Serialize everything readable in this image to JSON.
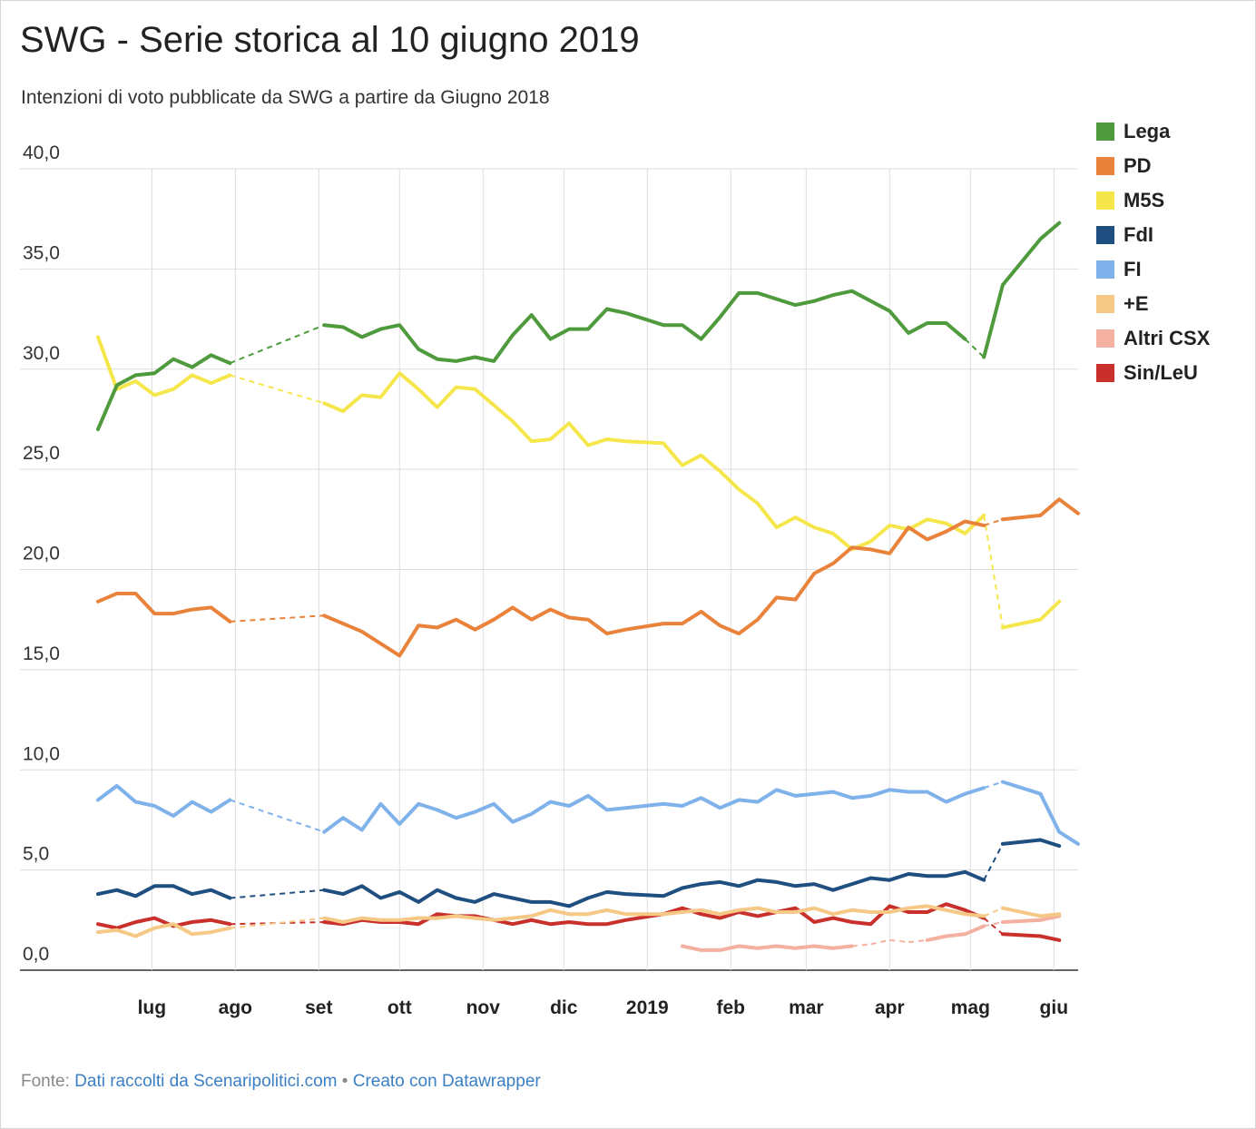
{
  "header": {
    "title": "SWG - Serie storica al 10 giugno 2019",
    "subtitle": "Intenzioni di voto pubblicate da SWG a partire da Giugno 2018"
  },
  "footer": {
    "label": "Fonte:",
    "source": "Dati raccolti da Scenaripolitici.com",
    "separator": "•",
    "credit": "Creato con Datawrapper"
  },
  "chart_data": {
    "type": "line",
    "title": "SWG - Serie storica al 10 giugno 2019",
    "subtitle": "Intenzioni di voto pubblicate da SWG a partire da Giugno 2018",
    "y_ticks": [
      "40,0",
      "35,0",
      "30,0",
      "25,0",
      "20,0",
      "15,0",
      "10,0",
      "5,0",
      "0,0"
    ],
    "ylim": [
      0,
      40
    ],
    "x_ticks": [
      {
        "label": "lug",
        "date": "2018-07-01"
      },
      {
        "label": "ago",
        "date": "2018-08-01"
      },
      {
        "label": "set",
        "date": "2018-09-01"
      },
      {
        "label": "ott",
        "date": "2018-10-01"
      },
      {
        "label": "nov",
        "date": "2018-11-01"
      },
      {
        "label": "dic",
        "date": "2018-12-01"
      },
      {
        "label": "2019",
        "date": "2019-01-01"
      },
      {
        "label": "feb",
        "date": "2019-02-01"
      },
      {
        "label": "mar",
        "date": "2019-03-01"
      },
      {
        "label": "apr",
        "date": "2019-04-01"
      },
      {
        "label": "mag",
        "date": "2019-05-01"
      },
      {
        "label": "giu",
        "date": "2019-06-01"
      }
    ],
    "grid": true,
    "legend": "right",
    "x": [
      "2018-06-11",
      "2018-06-18",
      "2018-06-25",
      "2018-07-02",
      "2018-07-09",
      "2018-07-16",
      "2018-07-23",
      "2018-07-30",
      "2018-09-03",
      "2018-09-10",
      "2018-09-17",
      "2018-09-24",
      "2018-10-01",
      "2018-10-08",
      "2018-10-15",
      "2018-10-22",
      "2018-10-29",
      "2018-11-05",
      "2018-11-12",
      "2018-11-19",
      "2018-11-26",
      "2018-12-03",
      "2018-12-10",
      "2018-12-17",
      "2018-12-24",
      "2019-01-07",
      "2019-01-14",
      "2019-01-21",
      "2019-01-28",
      "2019-02-04",
      "2019-02-11",
      "2019-02-18",
      "2019-02-25",
      "2019-03-04",
      "2019-03-11",
      "2019-03-18",
      "2019-03-25",
      "2019-04-01",
      "2019-04-08",
      "2019-04-15",
      "2019-04-22",
      "2019-04-29",
      "2019-05-06",
      "2019-05-13",
      "2019-05-27",
      "2019-06-03",
      "2019-06-10"
    ],
    "series": [
      {
        "name": "Lega",
        "color": "#4e9a3c",
        "values": [
          27.0,
          29.2,
          29.7,
          29.8,
          30.5,
          30.1,
          30.7,
          30.3,
          32.2,
          32.1,
          31.6,
          32.0,
          32.2,
          31.0,
          30.5,
          30.4,
          30.6,
          30.4,
          31.7,
          32.7,
          31.5,
          32.0,
          32.0,
          33.0,
          32.8,
          32.2,
          32.2,
          31.5,
          32.6,
          33.8,
          33.8,
          33.5,
          33.2,
          33.4,
          33.7,
          33.9,
          33.4,
          32.9,
          31.8,
          32.3,
          32.3,
          31.5,
          30.6,
          34.2,
          36.5,
          37.3,
          null
        ],
        "gaps_after": [
          7,
          41
        ]
      },
      {
        "name": "PD",
        "color": "#e9823a",
        "values": [
          18.4,
          18.8,
          18.8,
          17.8,
          17.8,
          18.0,
          18.1,
          17.4,
          17.7,
          17.3,
          16.9,
          16.3,
          15.7,
          17.2,
          17.1,
          17.5,
          17.0,
          17.5,
          18.1,
          17.5,
          18.0,
          17.6,
          17.5,
          16.8,
          17.0,
          17.3,
          17.3,
          17.9,
          17.2,
          16.8,
          17.5,
          18.6,
          18.5,
          19.8,
          20.3,
          21.1,
          21.0,
          20.8,
          22.1,
          21.5,
          21.9,
          22.4,
          22.2,
          22.5,
          22.7,
          23.5,
          22.8
        ],
        "gaps_after": [
          7,
          42
        ]
      },
      {
        "name": "M5S",
        "color": "#f5e74b",
        "values": [
          31.6,
          29.0,
          29.4,
          28.7,
          29.0,
          29.7,
          29.3,
          29.7,
          28.3,
          27.9,
          28.7,
          28.6,
          29.8,
          29.0,
          28.1,
          29.1,
          29.0,
          28.2,
          27.4,
          26.4,
          26.5,
          27.3,
          26.2,
          26.5,
          26.4,
          26.3,
          25.2,
          25.7,
          24.9,
          24.0,
          23.3,
          22.1,
          22.6,
          22.1,
          21.8,
          21.0,
          21.4,
          22.2,
          22.0,
          22.5,
          22.3,
          21.8,
          22.7,
          17.1,
          17.5,
          18.4,
          null
        ],
        "gaps_after": [
          7,
          42
        ]
      },
      {
        "name": "FdI",
        "color": "#1f4e80",
        "values": [
          3.8,
          4.0,
          3.7,
          4.2,
          4.2,
          3.8,
          4.0,
          3.6,
          4.0,
          3.8,
          4.2,
          3.6,
          3.9,
          3.4,
          4.0,
          3.6,
          3.4,
          3.8,
          3.6,
          3.4,
          3.4,
          3.2,
          3.6,
          3.9,
          3.8,
          3.7,
          4.1,
          4.3,
          4.4,
          4.2,
          4.5,
          4.4,
          4.2,
          4.3,
          4.0,
          4.3,
          4.6,
          4.5,
          4.8,
          4.7,
          4.7,
          4.9,
          4.5,
          6.3,
          6.5,
          6.2,
          null
        ],
        "gaps_after": [
          7,
          42
        ]
      },
      {
        "name": "FI",
        "color": "#7fb2ea",
        "values": [
          8.5,
          9.2,
          8.4,
          8.2,
          7.7,
          8.4,
          7.9,
          8.5,
          6.9,
          7.6,
          7.0,
          8.3,
          7.3,
          8.3,
          8.0,
          7.6,
          7.9,
          8.3,
          7.4,
          7.8,
          8.4,
          8.2,
          8.7,
          8.0,
          8.1,
          8.3,
          8.2,
          8.6,
          8.1,
          8.5,
          8.4,
          9.0,
          8.7,
          8.8,
          8.9,
          8.6,
          8.7,
          9.0,
          8.9,
          8.9,
          8.4,
          8.8,
          9.1,
          9.4,
          8.8,
          6.9,
          6.3
        ],
        "gaps_after": [
          7,
          42
        ]
      },
      {
        "name": "+E",
        "color": "#f6c886",
        "values": [
          1.9,
          2.0,
          1.7,
          2.1,
          2.3,
          1.8,
          1.9,
          2.1,
          2.6,
          2.4,
          2.6,
          2.5,
          2.5,
          2.6,
          2.6,
          2.7,
          2.6,
          2.5,
          2.6,
          2.7,
          3.0,
          2.8,
          2.8,
          3.0,
          2.8,
          2.8,
          2.9,
          3.0,
          2.8,
          3.0,
          3.1,
          2.9,
          2.9,
          3.1,
          2.8,
          3.0,
          2.9,
          2.9,
          3.1,
          3.2,
          3.0,
          2.8,
          2.7,
          3.1,
          2.7,
          2.8,
          null
        ],
        "gaps_after": [
          7,
          42
        ]
      },
      {
        "name": "Altri CSX",
        "color": "#f4b0a0",
        "values": [
          null,
          null,
          null,
          null,
          null,
          null,
          null,
          null,
          null,
          null,
          null,
          null,
          null,
          null,
          null,
          null,
          null,
          null,
          null,
          null,
          null,
          null,
          null,
          null,
          null,
          null,
          1.2,
          1.0,
          1.0,
          1.2,
          1.1,
          1.2,
          1.1,
          1.2,
          1.1,
          1.2,
          1.3,
          1.5,
          1.4,
          1.5,
          1.7,
          1.8,
          2.2,
          2.4,
          2.5,
          2.7,
          null
        ],
        "gaps_after": [
          35,
          36,
          37,
          38,
          42
        ]
      },
      {
        "name": "Sin/LeU",
        "color": "#c9302c",
        "values": [
          2.3,
          2.1,
          2.4,
          2.6,
          2.2,
          2.4,
          2.5,
          2.3,
          2.4,
          2.3,
          2.5,
          2.4,
          2.4,
          2.3,
          2.8,
          2.7,
          2.7,
          2.5,
          2.3,
          2.5,
          2.3,
          2.4,
          2.3,
          2.3,
          2.5,
          2.8,
          3.1,
          2.8,
          2.6,
          2.9,
          2.7,
          2.9,
          3.1,
          2.4,
          2.6,
          2.4,
          2.3,
          3.2,
          2.9,
          2.9,
          3.3,
          3.0,
          2.6,
          1.8,
          1.7,
          1.5,
          null
        ],
        "gaps_after": [
          7,
          42
        ]
      }
    ]
  }
}
